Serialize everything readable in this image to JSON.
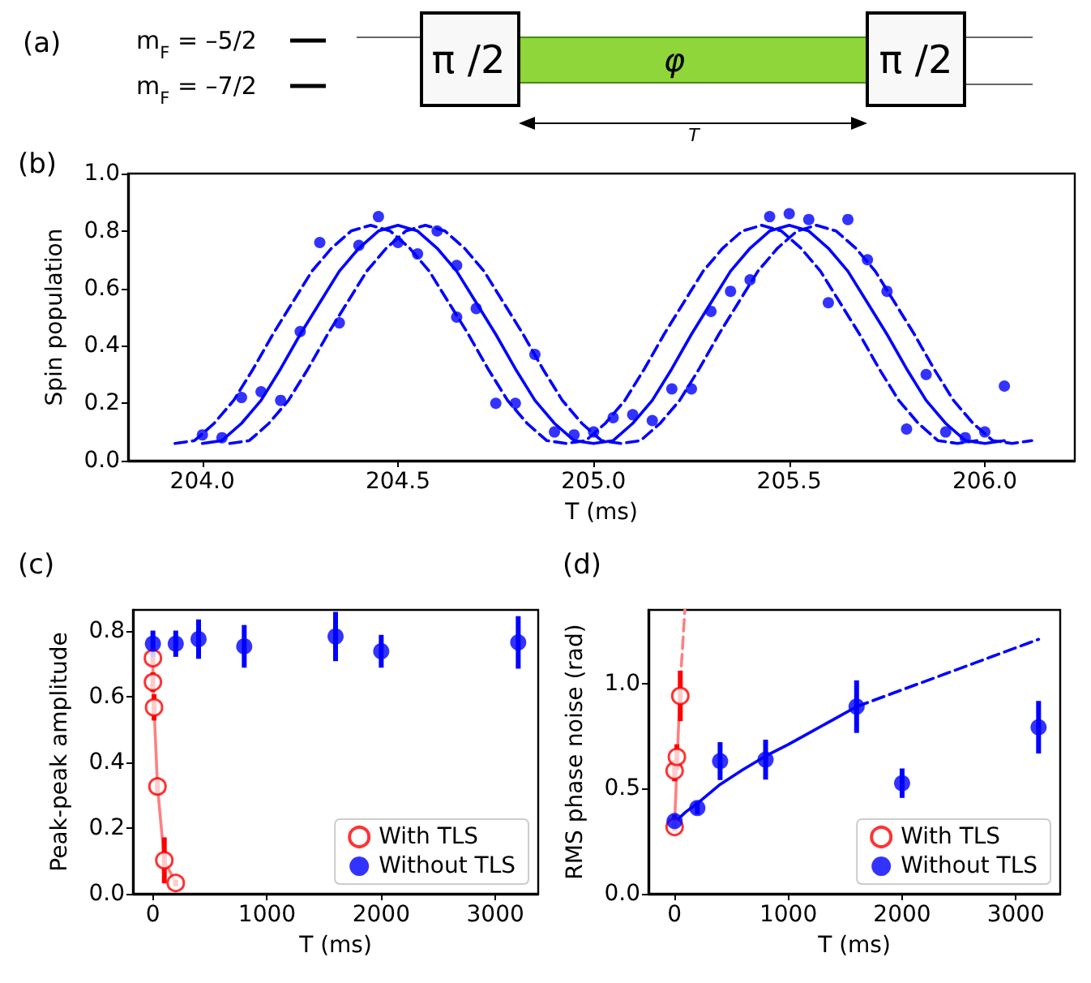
{
  "chart_data": [
    {
      "type": "other",
      "title": "(a)",
      "annotations": [
        "m$_{F}$ = –5/2",
        "m$_{F}$ = –7/2",
        "π /2",
        "φ",
        "π /2",
        "T"
      ]
    },
    {
      "type": "scatter",
      "title": "(b)",
      "xlabel": "T (ms)",
      "ylabel": "Spin population",
      "xlim": [
        203.81,
        206.23
      ],
      "ylim": [
        0,
        1
      ],
      "xticks": [
        {
          "value": 204,
          "label": "204.0"
        },
        {
          "value": 204.5,
          "label": "204.5"
        },
        {
          "value": 205,
          "label": "205.0"
        },
        {
          "value": 205.5,
          "label": "205.5"
        },
        {
          "value": 206,
          "label": "206.0"
        }
      ],
      "yticks": [
        {
          "value": 0,
          "label": "0.0"
        },
        {
          "value": 0.2,
          "label": "0.2"
        },
        {
          "value": 0.4,
          "label": "0.4"
        },
        {
          "value": 0.6,
          "label": "0.6"
        },
        {
          "value": 0.8,
          "label": "0.8"
        },
        {
          "value": 1,
          "label": "1.0"
        }
      ],
      "grid": false,
      "legend": false,
      "series": [
        {
          "type": "line",
          "color": "#0000ff",
          "line_style": "solid",
          "marker": "none",
          "x": [
            204.0,
            204.05,
            204.1,
            204.15,
            204.2,
            204.25,
            204.3,
            204.35,
            204.4,
            204.45,
            204.5,
            204.55,
            204.6,
            204.65,
            204.7,
            204.75,
            204.8,
            204.85,
            204.9,
            204.95,
            205.0,
            205.05,
            205.1,
            205.15,
            205.2,
            205.25,
            205.3,
            205.35,
            205.4,
            205.45,
            205.5,
            205.55,
            205.6,
            205.65,
            205.7,
            205.75,
            205.8,
            205.85,
            205.9,
            205.95,
            206.0,
            206.05
          ],
          "values": [
            0.06,
            0.07,
            0.13,
            0.21,
            0.32,
            0.44,
            0.55,
            0.66,
            0.74,
            0.8,
            0.82,
            0.8,
            0.74,
            0.66,
            0.55,
            0.44,
            0.32,
            0.21,
            0.13,
            0.07,
            0.06,
            0.07,
            0.13,
            0.21,
            0.32,
            0.44,
            0.55,
            0.66,
            0.74,
            0.8,
            0.82,
            0.8,
            0.74,
            0.66,
            0.55,
            0.44,
            0.32,
            0.21,
            0.13,
            0.07,
            0.06,
            0.07
          ]
        },
        {
          "type": "line",
          "color": "#0000ff",
          "line_style": "dashed",
          "marker": "none",
          "x": [
            203.93,
            203.98,
            204.03,
            204.08,
            204.13,
            204.18,
            204.23,
            204.28,
            204.33,
            204.38,
            204.43,
            204.48,
            204.53,
            204.58,
            204.63,
            204.68,
            204.73,
            204.78,
            204.83,
            204.88,
            204.93,
            204.98,
            205.03,
            205.08,
            205.13,
            205.18,
            205.23,
            205.28,
            205.33,
            205.38,
            205.43,
            205.48,
            205.53,
            205.58,
            205.63,
            205.68,
            205.73,
            205.78,
            205.83,
            205.88,
            205.93,
            205.98
          ],
          "values": [
            0.06,
            0.07,
            0.13,
            0.21,
            0.32,
            0.44,
            0.55,
            0.66,
            0.74,
            0.8,
            0.82,
            0.8,
            0.74,
            0.66,
            0.55,
            0.44,
            0.32,
            0.21,
            0.13,
            0.07,
            0.06,
            0.07,
            0.13,
            0.21,
            0.32,
            0.44,
            0.55,
            0.66,
            0.74,
            0.8,
            0.82,
            0.8,
            0.74,
            0.66,
            0.55,
            0.44,
            0.32,
            0.21,
            0.13,
            0.07,
            0.06,
            0.07
          ]
        },
        {
          "type": "line",
          "color": "#0000ff",
          "line_style": "dashed",
          "marker": "none",
          "x": [
            204.07,
            204.12,
            204.17,
            204.22,
            204.27,
            204.32,
            204.37,
            204.42,
            204.47,
            204.52,
            204.57,
            204.62,
            204.67,
            204.72,
            204.77,
            204.82,
            204.87,
            204.92,
            204.97,
            205.02,
            205.07,
            205.12,
            205.17,
            205.22,
            205.27,
            205.32,
            205.37,
            205.42,
            205.47,
            205.52,
            205.57,
            205.62,
            205.67,
            205.72,
            205.77,
            205.82,
            205.87,
            205.92,
            205.97,
            206.02,
            206.07,
            206.12
          ],
          "values": [
            0.06,
            0.07,
            0.13,
            0.21,
            0.32,
            0.44,
            0.55,
            0.66,
            0.74,
            0.8,
            0.82,
            0.8,
            0.74,
            0.66,
            0.55,
            0.44,
            0.32,
            0.21,
            0.13,
            0.07,
            0.06,
            0.07,
            0.13,
            0.21,
            0.32,
            0.44,
            0.55,
            0.66,
            0.74,
            0.8,
            0.82,
            0.8,
            0.74,
            0.66,
            0.55,
            0.44,
            0.32,
            0.21,
            0.13,
            0.07,
            0.06,
            0.07
          ]
        },
        {
          "type": "scatter",
          "color": "#0000ff",
          "marker": "circle",
          "x": [
            204.0,
            204.05,
            204.1,
            204.15,
            204.2,
            204.25,
            204.3,
            204.35,
            204.4,
            204.45,
            204.5,
            204.55,
            204.6,
            204.65,
            204.65,
            204.7,
            204.75,
            204.8,
            204.85,
            204.9,
            204.95,
            205.0,
            205.05,
            205.1,
            205.15,
            205.2,
            205.25,
            205.3,
            205.35,
            205.4,
            205.45,
            205.5,
            205.55,
            205.6,
            205.65,
            205.7,
            205.75,
            205.8,
            205.85,
            205.9,
            205.95,
            206.0,
            206.05
          ],
          "values": [
            0.09,
            0.08,
            0.22,
            0.24,
            0.21,
            0.45,
            0.76,
            0.48,
            0.75,
            0.85,
            0.76,
            0.72,
            0.8,
            0.68,
            0.5,
            0.53,
            0.2,
            0.2,
            0.37,
            0.1,
            0.09,
            0.1,
            0.15,
            0.16,
            0.14,
            0.25,
            0.25,
            0.52,
            0.59,
            0.63,
            0.85,
            0.86,
            0.84,
            0.55,
            0.84,
            0.7,
            0.59,
            0.11,
            0.3,
            0.1,
            0.08,
            0.1,
            0.26
          ]
        }
      ]
    },
    {
      "type": "scatter",
      "title": "(c)",
      "xlabel": "T (ms)",
      "ylabel": "Peak-peak amplitude",
      "xlim": [
        -175,
        3375
      ],
      "ylim": [
        0,
        0.865
      ],
      "xticks": [
        0,
        1000,
        2000,
        3000
      ],
      "yticks": [
        {
          "value": 0,
          "label": "0.0"
        },
        {
          "value": 0.2,
          "label": "0.2"
        },
        {
          "value": 0.4,
          "label": "0.4"
        },
        {
          "value": 0.6,
          "label": "0.6"
        },
        {
          "value": 0.8,
          "label": "0.8"
        }
      ],
      "grid": false,
      "legend": "bottom right",
      "series": [
        {
          "type": "line",
          "color": "#ff8080",
          "line_style": "solid",
          "marker": "none",
          "x": [
            0,
            0,
            10,
            40,
            100,
            200
          ],
          "values": [
            0.718,
            0.645,
            0.568,
            0.327,
            0.102,
            0.033
          ]
        },
        {
          "name": "With TLS",
          "type": "scatter",
          "color": "#ff0000",
          "marker": "circle",
          "x": [
            0,
            0,
            10,
            40,
            100,
            200
          ],
          "values": [
            0.718,
            0.645,
            0.568,
            0.327,
            0.102,
            0.033
          ],
          "errors": [
            0.02,
            0.03,
            0.04,
            0.025,
            0.07,
            0.01
          ]
        },
        {
          "name": "Without TLS",
          "type": "scatter",
          "color": "#0000ff",
          "marker": "circle",
          "x": [
            0,
            200,
            400,
            800,
            1600,
            2000,
            3200
          ],
          "values": [
            0.762,
            0.762,
            0.776,
            0.754,
            0.784,
            0.739,
            0.766
          ],
          "errors": [
            0.04,
            0.04,
            0.06,
            0.065,
            0.075,
            0.05,
            0.08
          ]
        }
      ]
    },
    {
      "type": "scatter",
      "title": "(d)",
      "xlabel": "T (ms)",
      "ylabel": "RMS phase noise (rad)",
      "xlim": [
        -230,
        3390
      ],
      "ylim": [
        0,
        1.35
      ],
      "xticks": [
        0,
        1000,
        2000,
        3000
      ],
      "yticks": [
        {
          "value": 0,
          "label": "0.0"
        },
        {
          "value": 0.5,
          "label": "0.5"
        },
        {
          "value": 1,
          "label": "1.0"
        }
      ],
      "grid": false,
      "legend": "bottom right",
      "series": [
        {
          "type": "line",
          "color": "#ff8080",
          "line_style": "solid",
          "marker": "none",
          "x": [
            0,
            20,
            50
          ],
          "values": [
            0.33,
            0.6,
            1.0
          ]
        },
        {
          "type": "line",
          "color": "#ff8080",
          "line_style": "dashed",
          "marker": "none",
          "x": [
            50,
            90
          ],
          "values": [
            1.0,
            1.35
          ]
        },
        {
          "type": "line",
          "color": "#0000ff",
          "line_style": "solid",
          "marker": "none",
          "x": [
            0,
            100,
            200,
            400,
            600,
            800,
            1000,
            1200,
            1400,
            1600
          ],
          "values": [
            0.34,
            0.39,
            0.43,
            0.52,
            0.59,
            0.655,
            0.71,
            0.77,
            0.83,
            0.89
          ]
        },
        {
          "type": "line",
          "color": "#0000ff",
          "line_style": "dashed",
          "marker": "none",
          "x": [
            1600,
            2000,
            2400,
            2800,
            3200
          ],
          "values": [
            0.89,
            0.97,
            1.05,
            1.13,
            1.21
          ]
        },
        {
          "name": "With TLS",
          "type": "scatter",
          "color": "#ff0000",
          "marker": "circle",
          "x": [
            0,
            0,
            20,
            50
          ],
          "values": [
            0.318,
            0.585,
            0.651,
            0.941
          ],
          "errors": [
            0.02,
            0.05,
            0.06,
            0.12
          ]
        },
        {
          "name": "Without TLS",
          "type": "scatter",
          "color": "#0000ff",
          "marker": "circle",
          "x": [
            0,
            200,
            400,
            800,
            1600,
            2000,
            3200
          ],
          "values": [
            0.346,
            0.408,
            0.631,
            0.638,
            0.89,
            0.526,
            0.792
          ],
          "errors": [
            0.03,
            0.03,
            0.09,
            0.095,
            0.125,
            0.07,
            0.125
          ]
        }
      ]
    }
  ]
}
